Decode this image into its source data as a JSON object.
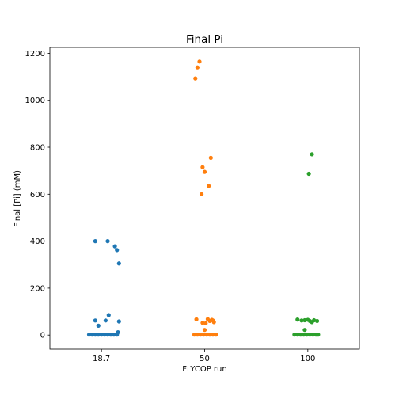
{
  "chart_data": {
    "type": "scatter",
    "title": "Final Pi",
    "xlabel": "FLYCOP run",
    "ylabel": "Final [Pi] (mM)",
    "categories": [
      "18.7",
      "50",
      "100"
    ],
    "ylim": [
      -60,
      1225
    ],
    "yticks": [
      0,
      200,
      400,
      600,
      800,
      1000,
      1200
    ],
    "grid": false,
    "series": [
      {
        "color": "#1f77b4",
        "category_index": 0,
        "points": [
          {
            "jitter": -0.06,
            "y": 400
          },
          {
            "jitter": 0.06,
            "y": 400
          },
          {
            "jitter": 0.13,
            "y": 378
          },
          {
            "jitter": 0.15,
            "y": 362
          },
          {
            "jitter": 0.17,
            "y": 305
          },
          {
            "jitter": 0.07,
            "y": 85
          },
          {
            "jitter": -0.06,
            "y": 62
          },
          {
            "jitter": 0.04,
            "y": 62
          },
          {
            "jitter": 0.17,
            "y": 58
          },
          {
            "jitter": -0.03,
            "y": 40
          },
          {
            "jitter": 0.16,
            "y": 12
          },
          {
            "jitter": -0.12,
            "y": 2
          },
          {
            "jitter": -0.09,
            "y": 2
          },
          {
            "jitter": -0.06,
            "y": 2
          },
          {
            "jitter": -0.03,
            "y": 2
          },
          {
            "jitter": 0.0,
            "y": 2
          },
          {
            "jitter": 0.03,
            "y": 2
          },
          {
            "jitter": 0.06,
            "y": 2
          },
          {
            "jitter": 0.09,
            "y": 2
          },
          {
            "jitter": 0.12,
            "y": 2
          },
          {
            "jitter": 0.15,
            "y": 2
          }
        ]
      },
      {
        "color": "#ff7f0e",
        "category_index": 1,
        "points": [
          {
            "jitter": -0.05,
            "y": 1165
          },
          {
            "jitter": -0.07,
            "y": 1140
          },
          {
            "jitter": -0.09,
            "y": 1093
          },
          {
            "jitter": 0.06,
            "y": 755
          },
          {
            "jitter": -0.02,
            "y": 715
          },
          {
            "jitter": 0.0,
            "y": 695
          },
          {
            "jitter": 0.04,
            "y": 635
          },
          {
            "jitter": -0.03,
            "y": 600
          },
          {
            "jitter": -0.08,
            "y": 67
          },
          {
            "jitter": 0.03,
            "y": 68
          },
          {
            "jitter": 0.07,
            "y": 65
          },
          {
            "jitter": 0.08,
            "y": 62
          },
          {
            "jitter": 0.05,
            "y": 60
          },
          {
            "jitter": 0.09,
            "y": 55
          },
          {
            "jitter": -0.02,
            "y": 52
          },
          {
            "jitter": 0.01,
            "y": 50
          },
          {
            "jitter": 0.0,
            "y": 22
          },
          {
            "jitter": -0.1,
            "y": 2
          },
          {
            "jitter": -0.07,
            "y": 2
          },
          {
            "jitter": -0.04,
            "y": 2
          },
          {
            "jitter": -0.01,
            "y": 2
          },
          {
            "jitter": 0.02,
            "y": 2
          },
          {
            "jitter": 0.05,
            "y": 2
          },
          {
            "jitter": 0.08,
            "y": 2
          },
          {
            "jitter": 0.11,
            "y": 2
          }
        ]
      },
      {
        "color": "#2ca02c",
        "category_index": 2,
        "points": [
          {
            "jitter": 0.04,
            "y": 770
          },
          {
            "jitter": 0.01,
            "y": 687
          },
          {
            "jitter": -0.1,
            "y": 66
          },
          {
            "jitter": -0.06,
            "y": 62
          },
          {
            "jitter": -0.03,
            "y": 63
          },
          {
            "jitter": 0.0,
            "y": 65
          },
          {
            "jitter": 0.02,
            "y": 60
          },
          {
            "jitter": 0.06,
            "y": 63
          },
          {
            "jitter": 0.09,
            "y": 60
          },
          {
            "jitter": 0.04,
            "y": 55
          },
          {
            "jitter": -0.03,
            "y": 22
          },
          {
            "jitter": -0.13,
            "y": 2
          },
          {
            "jitter": -0.1,
            "y": 2
          },
          {
            "jitter": -0.07,
            "y": 2
          },
          {
            "jitter": -0.04,
            "y": 2
          },
          {
            "jitter": -0.01,
            "y": 2
          },
          {
            "jitter": 0.02,
            "y": 2
          },
          {
            "jitter": 0.05,
            "y": 2
          },
          {
            "jitter": 0.08,
            "y": 2
          },
          {
            "jitter": 0.1,
            "y": 2
          }
        ]
      }
    ]
  }
}
